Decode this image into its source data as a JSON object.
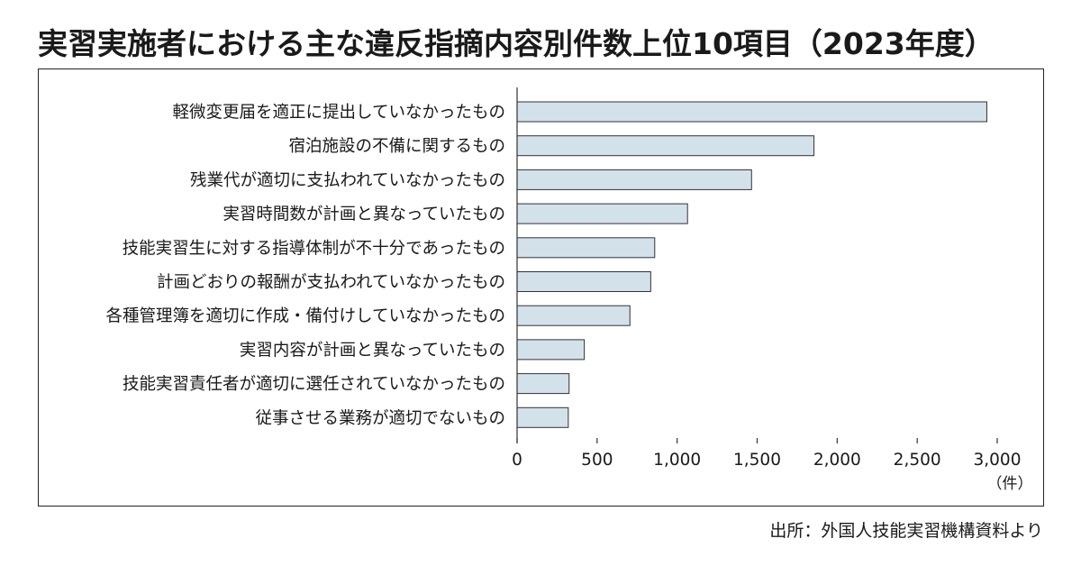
{
  "title": "実習実施者における主な違反指摘内容別件数上位10項目（2023年度）",
  "source": "出所：外国人技能実習機構資料より",
  "unit_label": "（件）",
  "colors": {
    "bar_fill": "#d3e1ea",
    "bar_stroke": "#333333",
    "axis": "#333333"
  },
  "chart_data": {
    "type": "bar",
    "orientation": "horizontal",
    "title": "実習実施者における主な違反指摘内容別件数上位10項目（2023年度）",
    "xlabel": "（件）",
    "ylabel": "",
    "xlim": [
      0,
      3000
    ],
    "ticks": [
      0,
      500,
      1000,
      1500,
      2000,
      2500,
      3000
    ],
    "tick_labels": [
      "0",
      "500",
      "1,000",
      "1,500",
      "2,000",
      "2,500",
      "3,000"
    ],
    "grid": false,
    "categories": [
      "軽微変更届を適正に提出していなかったもの",
      "宿泊施設の不備に関するもの",
      "残業代が適切に支払われていなかったもの",
      "実習時間数が計画と異なっていたもの",
      "技能実習生に対する指導体制が不十分であったもの",
      "計画どおりの報酬が支払われていなかったもの",
      "各種管理簿を適切に作成・備付けしていなかったもの",
      "実習内容が計画と異なっていたもの",
      "技能実習責任者が適切に選任されていなかったもの",
      "従事させる業務が適切でないもの"
    ],
    "values": [
      2935,
      1855,
      1465,
      1065,
      860,
      835,
      705,
      420,
      325,
      320
    ]
  }
}
